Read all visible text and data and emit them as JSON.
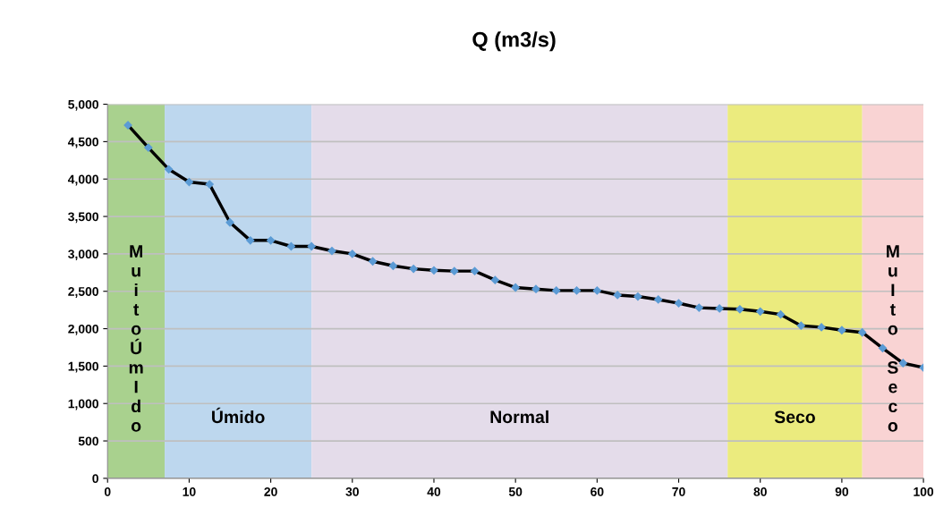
{
  "chart_data": {
    "type": "line",
    "title": "Q (m3/s)",
    "x": [
      2.5,
      5,
      7.5,
      10,
      12.5,
      15,
      17.5,
      20,
      22.5,
      25,
      27.5,
      30,
      32.5,
      35,
      37.5,
      40,
      42.5,
      45,
      47.5,
      50,
      52.5,
      55,
      57.5,
      60,
      62.5,
      65,
      67.5,
      70,
      72.5,
      75,
      77.5,
      80,
      82.5,
      85,
      87.5,
      90,
      92.5,
      95,
      97.5,
      100
    ],
    "series": [
      {
        "color": "#000000",
        "values": [
          4720,
          4420,
          4130,
          3960,
          3930,
          3420,
          3180,
          3180,
          3100,
          3100,
          3040,
          3000,
          2900,
          2840,
          2800,
          2780,
          2770,
          2770,
          2650,
          2550,
          2530,
          2510,
          2510,
          2510,
          2450,
          2430,
          2390,
          2340,
          2280,
          2270,
          2260,
          2230,
          2190,
          2040,
          2020,
          1980,
          1950,
          1740,
          1540,
          1480
        ]
      }
    ],
    "marker": "diamond",
    "line_style": "solid",
    "xlim": [
      0,
      100
    ],
    "xticks": [
      0,
      10,
      20,
      30,
      40,
      50,
      60,
      70,
      80,
      90,
      100
    ],
    "ylim": [
      0,
      5000
    ],
    "yticks": [
      0,
      500,
      {
        "value": 1000,
        "label": "1,000"
      },
      {
        "value": 1500,
        "label": "1,500"
      },
      {
        "value": 2000,
        "label": "2,000"
      },
      {
        "value": 2500,
        "label": "2,500"
      },
      {
        "value": 3000,
        "label": "3,000"
      },
      {
        "value": 3500,
        "label": "3,500"
      },
      {
        "value": 4000,
        "label": "4,000"
      },
      {
        "value": 4500,
        "label": "4,500"
      },
      {
        "value": 5000,
        "label": "5,000"
      }
    ],
    "grid": "y",
    "bands": [
      {
        "axis": "x",
        "from": 0,
        "to": 7,
        "label": "MuitoÚmIdo",
        "color": "#a9d18e"
      },
      {
        "axis": "x",
        "from": 7,
        "to": 25,
        "label": "Úmido",
        "color": "#bdd7ee"
      },
      {
        "axis": "x",
        "from": 25,
        "to": 76,
        "label": "Normal",
        "color": "#e4dcea"
      },
      {
        "axis": "x",
        "from": 76,
        "to": 92.5,
        "label": "Seco",
        "color": "#ebeb7e"
      },
      {
        "axis": "x",
        "from": 92.5,
        "to": 100,
        "label": "MuIto Seco",
        "color": "#f9d3d3"
      }
    ]
  }
}
